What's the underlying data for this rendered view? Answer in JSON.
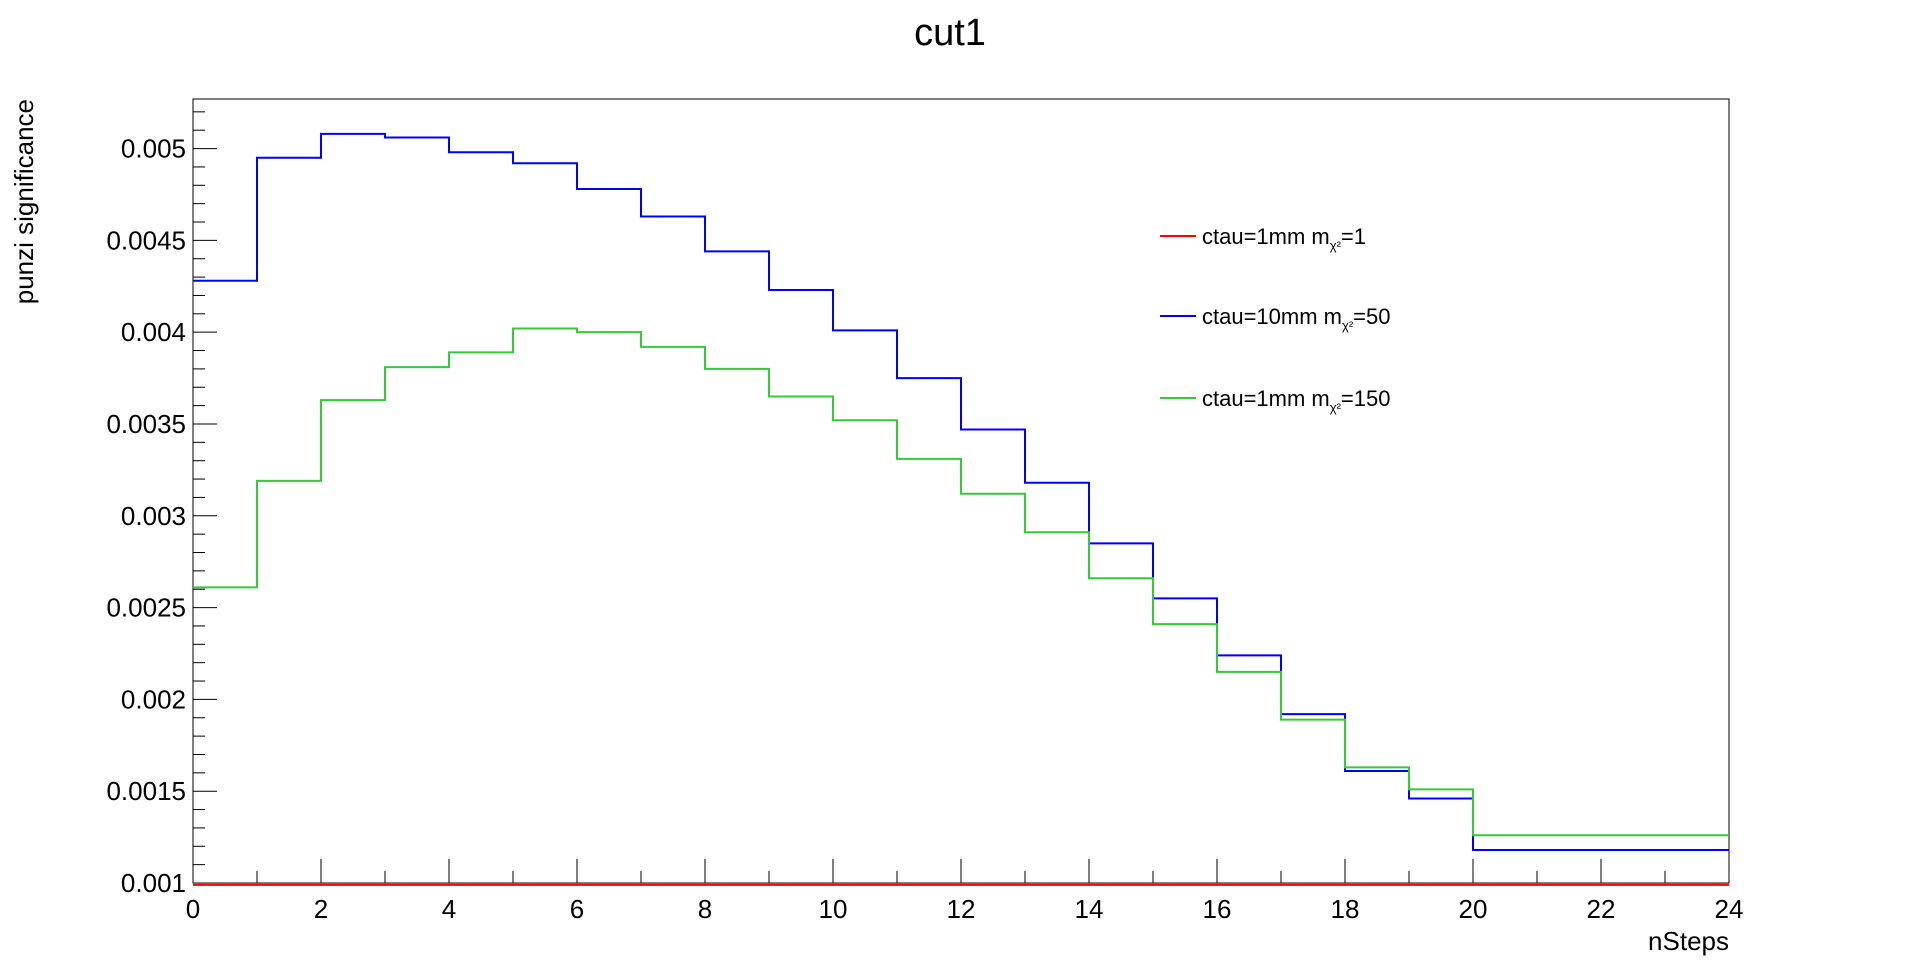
{
  "chart_data": {
    "type": "line",
    "title": "cut1",
    "xlabel": "nSteps",
    "ylabel": "punzi significance",
    "xlim": [
      0,
      24
    ],
    "ylim": [
      0.001,
      0.00527
    ],
    "x_ticks": [
      0,
      2,
      4,
      6,
      8,
      10,
      12,
      14,
      16,
      18,
      20,
      22,
      24
    ],
    "x_tick_labels": [
      "0",
      "2",
      "4",
      "6",
      "8",
      "10",
      "12",
      "14",
      "16",
      "18",
      "20",
      "22",
      "24"
    ],
    "y_ticks": [
      0.001,
      0.0015,
      0.002,
      0.0025,
      0.003,
      0.0035,
      0.004,
      0.0045,
      0.005
    ],
    "y_tick_labels": [
      "0.001",
      "0.0015",
      "0.002",
      "0.0025",
      "0.003",
      "0.0035",
      "0.004",
      "0.0045",
      "0.005"
    ],
    "bin_edges": [
      0,
      1,
      2,
      3,
      4,
      5,
      6,
      7,
      8,
      9,
      10,
      11,
      12,
      13,
      14,
      15,
      16,
      17,
      18,
      19,
      20,
      21,
      22,
      23,
      24
    ],
    "grid": false,
    "legend_position": "top-right",
    "series": [
      {
        "name": "ctau=1mm m",
        "subscript": "χ²",
        "suffix": "=1",
        "color": "#ff0000",
        "values": [
          0.00099,
          0.00099,
          0.00099,
          0.00099,
          0.00099,
          0.00099,
          0.00099,
          0.00099,
          0.00099,
          0.00099,
          0.00099,
          0.00099,
          0.00099,
          0.00099,
          0.00099,
          0.00099,
          0.00099,
          0.00099,
          0.00099,
          0.00099,
          0.00099,
          0.00099,
          0.00099,
          0.00099
        ]
      },
      {
        "name": "ctau=10mm m",
        "subscript": "χ²",
        "suffix": "=50",
        "color": "#0000ff",
        "values": [
          0.00428,
          0.00495,
          0.00508,
          0.00506,
          0.00498,
          0.00492,
          0.00478,
          0.00463,
          0.00444,
          0.00423,
          0.00401,
          0.00375,
          0.00347,
          0.00318,
          0.00285,
          0.00255,
          0.00224,
          0.00192,
          0.00161,
          0.00146,
          0.00118,
          0.00118,
          0.00118,
          0.00118
        ]
      },
      {
        "name": "ctau=1mm m",
        "subscript": "χ²",
        "suffix": "=150",
        "color": "#33cc33",
        "values": [
          0.00261,
          0.00319,
          0.00363,
          0.00381,
          0.00389,
          0.00402,
          0.004,
          0.00392,
          0.0038,
          0.00365,
          0.00352,
          0.00331,
          0.00312,
          0.00291,
          0.00266,
          0.00241,
          0.00215,
          0.00189,
          0.00163,
          0.00151,
          0.00126,
          0.00126,
          0.00126,
          0.00126
        ]
      }
    ]
  }
}
